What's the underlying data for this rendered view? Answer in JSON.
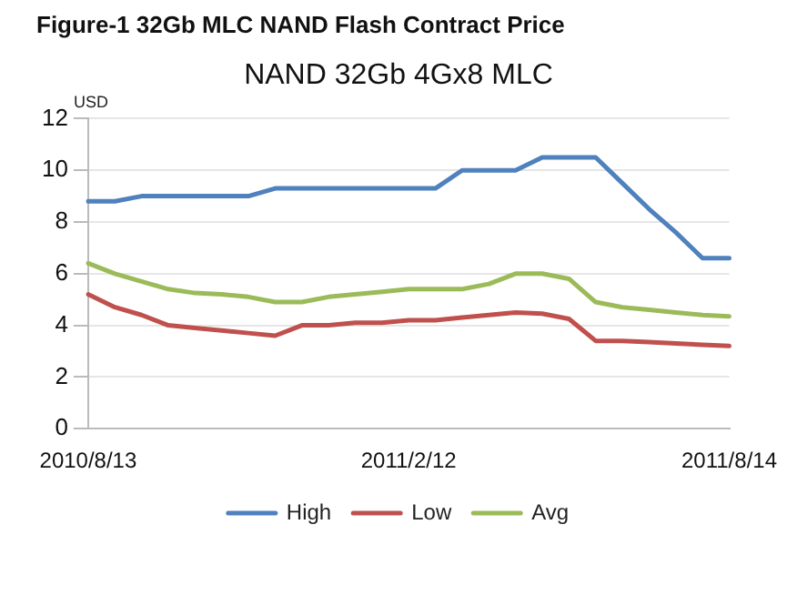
{
  "chart_data": {
    "type": "line",
    "title": "Figure-1 32Gb MLC NAND Flash Contract Price",
    "subtitle": "NAND 32Gb 4Gx8 MLC",
    "ylabel": "USD",
    "categories": [
      "2010/8/13",
      null,
      null,
      null,
      null,
      null,
      null,
      null,
      null,
      null,
      null,
      null,
      "2011/2/12",
      null,
      null,
      null,
      null,
      null,
      null,
      null,
      null,
      null,
      null,
      null,
      "2011/8/14"
    ],
    "series": [
      {
        "name": "High",
        "color": "#4f81bd",
        "values": [
          8.8,
          8.8,
          9.0,
          9.0,
          9.0,
          9.0,
          9.0,
          9.3,
          9.3,
          9.3,
          9.3,
          9.3,
          9.3,
          9.3,
          10.0,
          10.0,
          10.0,
          10.5,
          10.5,
          10.5,
          9.5,
          8.5,
          7.6,
          6.6,
          6.6
        ]
      },
      {
        "name": "Low",
        "color": "#c0504d",
        "values": [
          5.2,
          4.7,
          4.4,
          4.0,
          3.9,
          3.8,
          3.7,
          3.6,
          4.0,
          4.0,
          4.1,
          4.1,
          4.2,
          4.2,
          4.3,
          4.4,
          4.5,
          4.45,
          4.25,
          3.4,
          3.4,
          3.35,
          3.3,
          3.25,
          3.2
        ]
      },
      {
        "name": "Avg",
        "color": "#9bbb59",
        "values": [
          6.4,
          6.0,
          5.7,
          5.4,
          5.25,
          5.2,
          5.1,
          4.9,
          4.9,
          5.1,
          5.2,
          5.3,
          5.4,
          5.4,
          5.4,
          5.6,
          6.0,
          6.0,
          5.8,
          4.9,
          4.7,
          4.6,
          4.5,
          4.4,
          4.35
        ]
      }
    ],
    "ylim": [
      0,
      12
    ],
    "yticks": [
      0,
      2,
      4,
      6,
      8,
      10,
      12
    ],
    "grid": "y",
    "legend": "bottom",
    "marker": "none",
    "line_style": "solid"
  }
}
